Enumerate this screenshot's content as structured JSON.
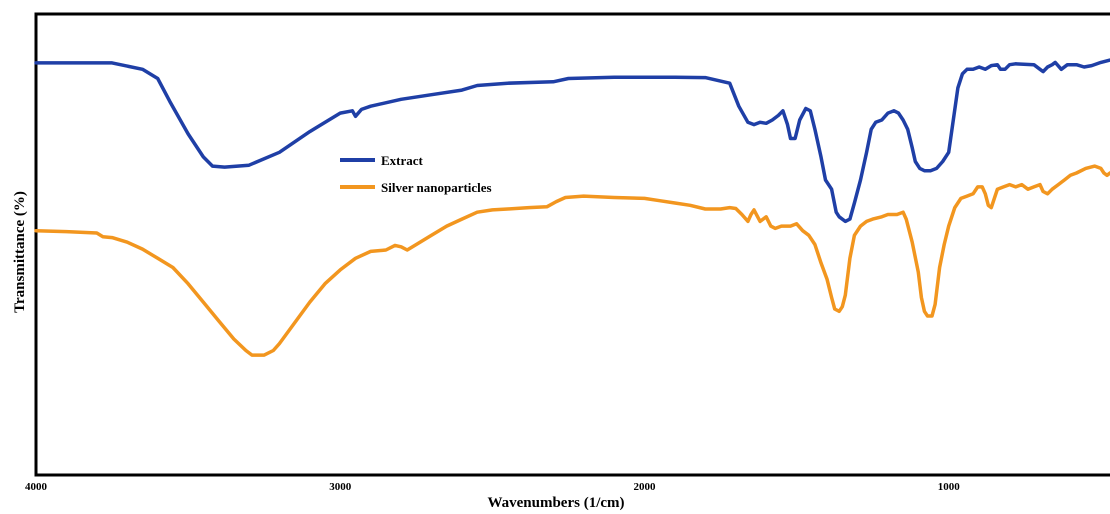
{
  "chart_data": {
    "type": "line",
    "xlabel": "Wavenumbers (1/cm)",
    "ylabel": "Transmittance (%)",
    "xlim": [
      4000,
      470
    ],
    "ylim": [
      0,
      100
    ],
    "x_ticks": [
      "4000",
      "3000",
      "2000",
      "1000"
    ],
    "x_tick_values": [
      4000,
      3000,
      2000,
      1000
    ],
    "grid": false,
    "legend_placement": "center",
    "series": [
      {
        "name": "Extract",
        "color": "#1f3fa6",
        "points": [
          [
            4000,
            89.4
          ],
          [
            3750,
            89.4
          ],
          [
            3650,
            88.0
          ],
          [
            3600,
            86.0
          ],
          [
            3560,
            81.0
          ],
          [
            3500,
            74.0
          ],
          [
            3450,
            69.0
          ],
          [
            3420,
            67.0
          ],
          [
            3380,
            66.8
          ],
          [
            3300,
            67.2
          ],
          [
            3200,
            70.0
          ],
          [
            3100,
            74.5
          ],
          [
            3000,
            78.5
          ],
          [
            2960,
            79.0
          ],
          [
            2950,
            77.8
          ],
          [
            2930,
            79.3
          ],
          [
            2900,
            80.0
          ],
          [
            2800,
            81.5
          ],
          [
            2700,
            82.5
          ],
          [
            2600,
            83.5
          ],
          [
            2550,
            84.5
          ],
          [
            2450,
            85.0
          ],
          [
            2300,
            85.3
          ],
          [
            2250,
            86.0
          ],
          [
            2100,
            86.3
          ],
          [
            1900,
            86.3
          ],
          [
            1800,
            86.2
          ],
          [
            1720,
            85.0
          ],
          [
            1690,
            80.0
          ],
          [
            1660,
            76.5
          ],
          [
            1640,
            76.0
          ],
          [
            1620,
            76.5
          ],
          [
            1600,
            76.3
          ],
          [
            1580,
            77.0
          ],
          [
            1560,
            78.0
          ],
          [
            1545,
            79.0
          ],
          [
            1530,
            76.0
          ],
          [
            1520,
            73.0
          ],
          [
            1505,
            73.0
          ],
          [
            1490,
            77.0
          ],
          [
            1470,
            79.5
          ],
          [
            1455,
            79.0
          ],
          [
            1440,
            75.0
          ],
          [
            1420,
            69.0
          ],
          [
            1405,
            64.0
          ],
          [
            1385,
            62.0
          ],
          [
            1370,
            57.0
          ],
          [
            1360,
            56.0
          ],
          [
            1340,
            55.0
          ],
          [
            1325,
            55.5
          ],
          [
            1310,
            59.0
          ],
          [
            1290,
            64.0
          ],
          [
            1270,
            70.0
          ],
          [
            1255,
            75.0
          ],
          [
            1240,
            76.5
          ],
          [
            1220,
            77.0
          ],
          [
            1200,
            78.5
          ],
          [
            1180,
            79.0
          ],
          [
            1165,
            78.5
          ],
          [
            1150,
            77.0
          ],
          [
            1135,
            75.0
          ],
          [
            1120,
            71.0
          ],
          [
            1110,
            68.0
          ],
          [
            1095,
            66.5
          ],
          [
            1080,
            66.0
          ],
          [
            1060,
            66.0
          ],
          [
            1040,
            66.5
          ],
          [
            1020,
            68.0
          ],
          [
            1000,
            70.0
          ],
          [
            985,
            77.0
          ],
          [
            970,
            84.0
          ],
          [
            955,
            87.0
          ],
          [
            940,
            88.0
          ],
          [
            920,
            88.0
          ],
          [
            900,
            88.5
          ],
          [
            880,
            88.0
          ],
          [
            860,
            88.8
          ],
          [
            840,
            89.0
          ],
          [
            830,
            88.0
          ],
          [
            815,
            88.0
          ],
          [
            800,
            89.0
          ],
          [
            780,
            89.2
          ],
          [
            720,
            89.0
          ],
          [
            700,
            88.0
          ],
          [
            690,
            87.5
          ],
          [
            675,
            88.5
          ],
          [
            660,
            89.0
          ],
          [
            650,
            89.5
          ],
          [
            630,
            88.0
          ],
          [
            610,
            89.0
          ],
          [
            580,
            89.0
          ],
          [
            555,
            88.5
          ],
          [
            530,
            88.8
          ],
          [
            500,
            89.5
          ],
          [
            470,
            90.0
          ]
        ]
      },
      {
        "name": "Silver nanoparticles",
        "color": "#f2961f",
        "points": [
          [
            4000,
            53.0
          ],
          [
            3900,
            52.8
          ],
          [
            3800,
            52.5
          ],
          [
            3780,
            51.7
          ],
          [
            3750,
            51.5
          ],
          [
            3700,
            50.5
          ],
          [
            3650,
            49.0
          ],
          [
            3600,
            47.0
          ],
          [
            3550,
            45.0
          ],
          [
            3500,
            41.5
          ],
          [
            3450,
            37.5
          ],
          [
            3400,
            33.5
          ],
          [
            3350,
            29.5
          ],
          [
            3310,
            27.0
          ],
          [
            3290,
            26.0
          ],
          [
            3250,
            26.0
          ],
          [
            3220,
            27.0
          ],
          [
            3200,
            28.5
          ],
          [
            3150,
            33.0
          ],
          [
            3100,
            37.5
          ],
          [
            3050,
            41.5
          ],
          [
            3000,
            44.5
          ],
          [
            2950,
            47.0
          ],
          [
            2900,
            48.5
          ],
          [
            2850,
            48.8
          ],
          [
            2820,
            49.8
          ],
          [
            2800,
            49.5
          ],
          [
            2780,
            48.8
          ],
          [
            2750,
            50.0
          ],
          [
            2700,
            52.0
          ],
          [
            2650,
            54.0
          ],
          [
            2600,
            55.5
          ],
          [
            2550,
            57.0
          ],
          [
            2500,
            57.5
          ],
          [
            2450,
            57.7
          ],
          [
            2380,
            58.0
          ],
          [
            2320,
            58.2
          ],
          [
            2290,
            59.3
          ],
          [
            2260,
            60.2
          ],
          [
            2200,
            60.5
          ],
          [
            2100,
            60.2
          ],
          [
            2000,
            60.0
          ],
          [
            1950,
            59.5
          ],
          [
            1900,
            59.0
          ],
          [
            1850,
            58.5
          ],
          [
            1800,
            57.7
          ],
          [
            1750,
            57.7
          ],
          [
            1720,
            58.0
          ],
          [
            1700,
            57.8
          ],
          [
            1680,
            56.5
          ],
          [
            1660,
            55.0
          ],
          [
            1650,
            56.5
          ],
          [
            1640,
            57.5
          ],
          [
            1620,
            55.0
          ],
          [
            1600,
            56.0
          ],
          [
            1585,
            54.0
          ],
          [
            1570,
            53.5
          ],
          [
            1550,
            54.0
          ],
          [
            1520,
            54.0
          ],
          [
            1500,
            54.5
          ],
          [
            1480,
            53.0
          ],
          [
            1460,
            52.0
          ],
          [
            1440,
            50.0
          ],
          [
            1420,
            46.0
          ],
          [
            1400,
            42.5
          ],
          [
            1385,
            38.5
          ],
          [
            1375,
            36.0
          ],
          [
            1360,
            35.5
          ],
          [
            1350,
            36.5
          ],
          [
            1340,
            39.0
          ],
          [
            1325,
            47.0
          ],
          [
            1310,
            52.0
          ],
          [
            1290,
            54.0
          ],
          [
            1270,
            55.0
          ],
          [
            1250,
            55.5
          ],
          [
            1220,
            56.0
          ],
          [
            1200,
            56.5
          ],
          [
            1170,
            56.5
          ],
          [
            1150,
            57.0
          ],
          [
            1140,
            55.5
          ],
          [
            1120,
            50.5
          ],
          [
            1100,
            44.0
          ],
          [
            1090,
            38.5
          ],
          [
            1080,
            35.5
          ],
          [
            1070,
            34.5
          ],
          [
            1055,
            34.5
          ],
          [
            1045,
            37.0
          ],
          [
            1030,
            45.0
          ],
          [
            1015,
            50.0
          ],
          [
            1000,
            54.0
          ],
          [
            980,
            58.0
          ],
          [
            960,
            60.0
          ],
          [
            940,
            60.5
          ],
          [
            920,
            61.0
          ],
          [
            905,
            62.5
          ],
          [
            890,
            62.5
          ],
          [
            880,
            61.0
          ],
          [
            870,
            58.5
          ],
          [
            860,
            58.0
          ],
          [
            840,
            62.0
          ],
          [
            820,
            62.5
          ],
          [
            800,
            63.0
          ],
          [
            780,
            62.5
          ],
          [
            760,
            63.0
          ],
          [
            740,
            62.0
          ],
          [
            720,
            62.5
          ],
          [
            700,
            63.0
          ],
          [
            690,
            61.5
          ],
          [
            675,
            61.0
          ],
          [
            660,
            62.0
          ],
          [
            640,
            63.0
          ],
          [
            620,
            64.0
          ],
          [
            600,
            65.0
          ],
          [
            580,
            65.5
          ],
          [
            550,
            66.5
          ],
          [
            520,
            67.0
          ],
          [
            500,
            66.5
          ],
          [
            490,
            65.5
          ],
          [
            480,
            65.0
          ],
          [
            470,
            65.5
          ]
        ]
      }
    ]
  }
}
